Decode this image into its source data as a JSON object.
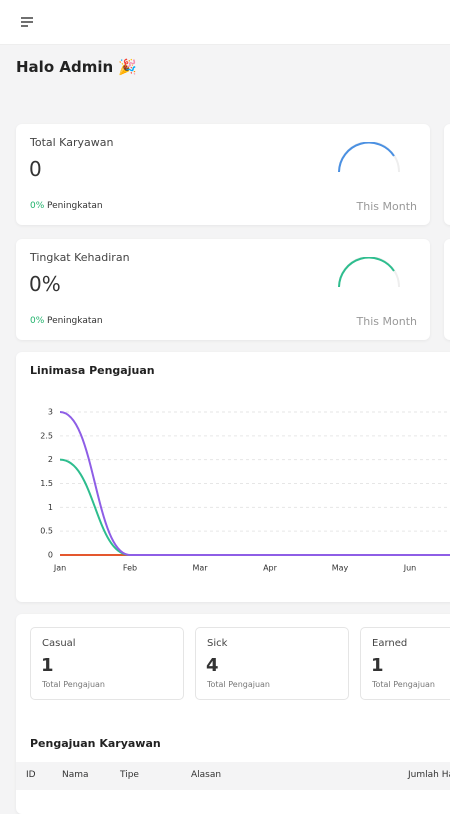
{
  "greeting": "Halo Admin 🎉",
  "cards": [
    {
      "title": "Total Karyawan",
      "value": "0",
      "change": "0%",
      "change_label": "Peningkatan",
      "period": "This Month",
      "arc_color": "#4a90e2"
    },
    {
      "title": "Tingkat Kehadiran",
      "value": "0%",
      "change": "0%",
      "change_label": "Peningkatan",
      "period": "This Month",
      "arc_color": "#2ebd8e"
    }
  ],
  "chart_data": {
    "type": "line",
    "title": "Linimasa Pengajuan",
    "categories": [
      "Jan",
      "Feb",
      "Mar",
      "Apr",
      "May",
      "Jun",
      null
    ],
    "series": [
      {
        "color": "#e4572e",
        "values": [
          0,
          0,
          0,
          0,
          0,
          0,
          0
        ]
      },
      {
        "color": "#2ebd8e",
        "values": [
          2,
          0,
          0,
          0,
          0,
          0,
          0
        ]
      },
      {
        "color": "#8e5ee6",
        "values": [
          3,
          0,
          0,
          0,
          0,
          0,
          0
        ]
      }
    ],
    "ylim": [
      0,
      3
    ],
    "yticks": [
      0,
      0.5,
      1,
      1.5,
      2,
      2.5,
      3
    ],
    "grid": true
  },
  "stats": [
    {
      "label": "Casual",
      "value": "1",
      "caption": "Total Pengajuan"
    },
    {
      "label": "Sick",
      "value": "4",
      "caption": "Total Pengajuan"
    },
    {
      "label": "Earned",
      "value": "1",
      "caption": "Total Pengajuan"
    }
  ],
  "table": {
    "title": "Pengajuan Karyawan",
    "columns": [
      "ID",
      "Nama",
      "Tipe",
      "Alasan",
      "Jumlah Hari"
    ]
  }
}
